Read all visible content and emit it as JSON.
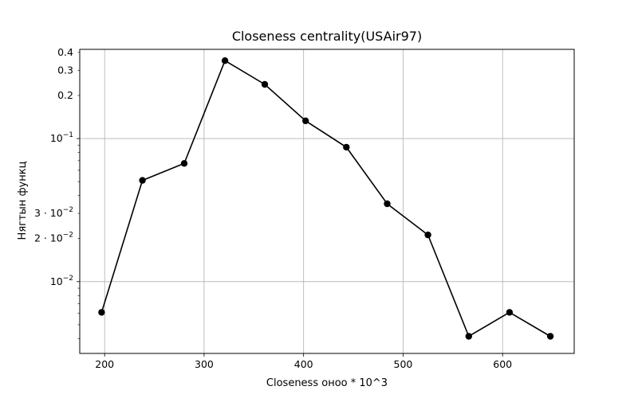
{
  "chart_data": {
    "type": "line",
    "title": "Closeness centrality(USAir97)",
    "xlabel": "Closeness оноо * 10^3",
    "ylabel": "Нягтын функц",
    "yscale": "log",
    "xlim": [
      175,
      672
    ],
    "ylim": [
      0.00315,
      0.42
    ],
    "grid": true,
    "series_color": "#000000",
    "x_ticks": [
      {
        "value": 200,
        "label": "200"
      },
      {
        "value": 300,
        "label": "300"
      },
      {
        "value": 400,
        "label": "400"
      },
      {
        "value": 500,
        "label": "500"
      },
      {
        "value": 600,
        "label": "600"
      }
    ],
    "y_ticks_major": [
      {
        "value": 0.01,
        "base": "10",
        "exp": "−2"
      },
      {
        "value": 0.1,
        "base": "10",
        "exp": "−1"
      }
    ],
    "y_ticks_minor_labeled": [
      {
        "value": 0.02,
        "label": "2 · 10"
      },
      {
        "value": 0.03,
        "label": "3 · 10"
      },
      {
        "value": 0.2,
        "label": "0.2"
      },
      {
        "value": 0.3,
        "label": "0.3"
      },
      {
        "value": 0.4,
        "label": "0.4"
      }
    ],
    "y_ticks_minor_labeled_exp": "−2",
    "y_ticks_minor_unlabeled": [
      0.004,
      0.005,
      0.006,
      0.007,
      0.008,
      0.009,
      0.04,
      0.05,
      0.06,
      0.07,
      0.08,
      0.09
    ],
    "x": [
      197,
      238,
      280,
      321,
      361,
      402,
      443,
      484,
      525,
      566,
      607,
      648
    ],
    "y": [
      0.0061,
      0.051,
      0.067,
      0.35,
      0.239,
      0.133,
      0.087,
      0.035,
      0.0212,
      0.00415,
      0.0061,
      0.00415
    ]
  }
}
